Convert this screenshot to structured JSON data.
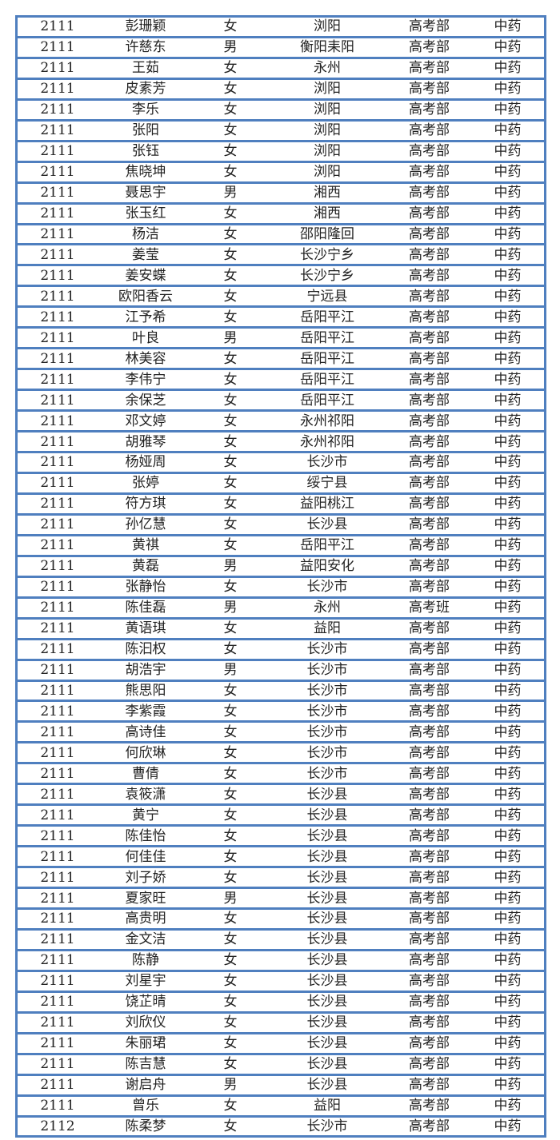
{
  "table": {
    "border_color": "#4f7fbf",
    "rows": [
      [
        "2111",
        "彭珊颖",
        "女",
        "浏阳",
        "高考部",
        "中药"
      ],
      [
        "2111",
        "许慈东",
        "男",
        "衡阳耒阳",
        "高考部",
        "中药"
      ],
      [
        "2111",
        "王茹",
        "女",
        "永州",
        "高考部",
        "中药"
      ],
      [
        "2111",
        "皮素芳",
        "女",
        "浏阳",
        "高考部",
        "中药"
      ],
      [
        "2111",
        "李乐",
        "女",
        "浏阳",
        "高考部",
        "中药"
      ],
      [
        "2111",
        "张阳",
        "女",
        "浏阳",
        "高考部",
        "中药"
      ],
      [
        "2111",
        "张钰",
        "女",
        "浏阳",
        "高考部",
        "中药"
      ],
      [
        "2111",
        "焦晓坤",
        "女",
        "浏阳",
        "高考部",
        "中药"
      ],
      [
        "2111",
        "聂思宇",
        "男",
        "湘西",
        "高考部",
        "中药"
      ],
      [
        "2111",
        "张玉红",
        "女",
        "湘西",
        "高考部",
        "中药"
      ],
      [
        "2111",
        "杨洁",
        "女",
        "邵阳隆回",
        "高考部",
        "中药"
      ],
      [
        "2111",
        "姜莹",
        "女",
        "长沙宁乡",
        "高考部",
        "中药"
      ],
      [
        "2111",
        "姜安蝶",
        "女",
        "长沙宁乡",
        "高考部",
        "中药"
      ],
      [
        "2111",
        "欧阳香云",
        "女",
        "宁远县",
        "高考部",
        "中药"
      ],
      [
        "2111",
        "江予希",
        "女",
        "岳阳平江",
        "高考部",
        "中药"
      ],
      [
        "2111",
        "叶良",
        "男",
        "岳阳平江",
        "高考部",
        "中药"
      ],
      [
        "2111",
        "林美容",
        "女",
        "岳阳平江",
        "高考部",
        "中药"
      ],
      [
        "2111",
        "李伟宁",
        "女",
        "岳阳平江",
        "高考部",
        "中药"
      ],
      [
        "2111",
        "余保芝",
        "女",
        "岳阳平江",
        "高考部",
        "中药"
      ],
      [
        "2111",
        "邓文婷",
        "女",
        "永州祁阳",
        "高考部",
        "中药"
      ],
      [
        "2111",
        "胡雅琴",
        "女",
        "永州祁阳",
        "高考部",
        "中药"
      ],
      [
        "2111",
        "杨娅周",
        "女",
        "长沙市",
        "高考部",
        "中药"
      ],
      [
        "2111",
        "张婷",
        "女",
        "绥宁县",
        "高考部",
        "中药"
      ],
      [
        "2111",
        "符方琪",
        "女",
        "益阳桃江",
        "高考部",
        "中药"
      ],
      [
        "2111",
        "孙亿慧",
        "女",
        "长沙县",
        "高考部",
        "中药"
      ],
      [
        "2111",
        "黄祺",
        "女",
        "岳阳平江",
        "高考部",
        "中药"
      ],
      [
        "2111",
        "黄磊",
        "男",
        "益阳安化",
        "高考部",
        "中药"
      ],
      [
        "2111",
        "张静怡",
        "女",
        "长沙市",
        "高考部",
        "中药"
      ],
      [
        "2111",
        "陈佳磊",
        "男",
        "永州",
        "高考班",
        "中药"
      ],
      [
        "2111",
        "黄语琪",
        "女",
        "益阳",
        "高考部",
        "中药"
      ],
      [
        "2111",
        "陈汩权",
        "女",
        "长沙市",
        "高考部",
        "中药"
      ],
      [
        "2111",
        "胡浩宇",
        "男",
        "长沙市",
        "高考部",
        "中药"
      ],
      [
        "2111",
        "熊思阳",
        "女",
        "长沙市",
        "高考部",
        "中药"
      ],
      [
        "2111",
        "李紫霞",
        "女",
        "长沙市",
        "高考部",
        "中药"
      ],
      [
        "2111",
        "高诗佳",
        "女",
        "长沙市",
        "高考部",
        "中药"
      ],
      [
        "2111",
        "何欣琳",
        "女",
        "长沙市",
        "高考部",
        "中药"
      ],
      [
        "2111",
        "曹倩",
        "女",
        "长沙市",
        "高考部",
        "中药"
      ],
      [
        "2111",
        "袁筱潇",
        "女",
        "长沙县",
        "高考部",
        "中药"
      ],
      [
        "2111",
        "黄宁",
        "女",
        "长沙县",
        "高考部",
        "中药"
      ],
      [
        "2111",
        "陈佳怡",
        "女",
        "长沙县",
        "高考部",
        "中药"
      ],
      [
        "2111",
        "何佳佳",
        "女",
        "长沙县",
        "高考部",
        "中药"
      ],
      [
        "2111",
        "刘子娇",
        "女",
        "长沙县",
        "高考部",
        "中药"
      ],
      [
        "2111",
        "夏家旺",
        "男",
        "长沙县",
        "高考部",
        "中药"
      ],
      [
        "2111",
        "高贵明",
        "女",
        "长沙县",
        "高考部",
        "中药"
      ],
      [
        "2111",
        "金文洁",
        "女",
        "长沙县",
        "高考部",
        "中药"
      ],
      [
        "2111",
        "陈静",
        "女",
        "长沙县",
        "高考部",
        "中药"
      ],
      [
        "2111",
        "刘星宇",
        "女",
        "长沙县",
        "高考部",
        "中药"
      ],
      [
        "2111",
        "饶芷晴",
        "女",
        "长沙县",
        "高考部",
        "中药"
      ],
      [
        "2111",
        "刘欣仪",
        "女",
        "长沙县",
        "高考部",
        "中药"
      ],
      [
        "2111",
        "朱丽珺",
        "女",
        "长沙县",
        "高考部",
        "中药"
      ],
      [
        "2111",
        "陈吉慧",
        "女",
        "长沙县",
        "高考部",
        "中药"
      ],
      [
        "2111",
        "谢启舟",
        "男",
        "长沙县",
        "高考部",
        "中药"
      ],
      [
        "2111",
        "曾乐",
        "女",
        "益阳",
        "高考部",
        "中药"
      ],
      [
        "2112",
        "陈柔梦",
        "女",
        "长沙市",
        "高考部",
        "中药"
      ]
    ]
  }
}
